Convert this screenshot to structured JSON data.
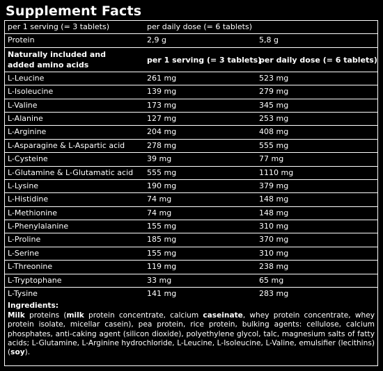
{
  "title": "Supplement Facts",
  "serving_row": {
    "per_serving": "per 1 serving (= 3 tablets)",
    "per_daily": "per daily dose (= 6 tablets)"
  },
  "protein_row": {
    "name": "Protein",
    "per_serving": "2,9 g",
    "per_daily": "5,8 g"
  },
  "amino_header": {
    "label": "Naturally included and added amino acids",
    "per_serving": "per 1 serving (= 3 tablets)",
    "per_daily": "per daily dose (= 6 tablets)"
  },
  "amino_acids": [
    {
      "name": "L-Leucine",
      "per_serving": "261 mg",
      "per_daily": "523 mg"
    },
    {
      "name": "L-Isoleucine",
      "per_serving": "139 mg",
      "per_daily": "279 mg"
    },
    {
      "name": "L-Valine",
      "per_serving": "173 mg",
      "per_daily": "345 mg"
    },
    {
      "name": "L-Alanine",
      "per_serving": "127 mg",
      "per_daily": "253 mg"
    },
    {
      "name": "L-Arginine",
      "per_serving": "204 mg",
      "per_daily": "408 mg"
    },
    {
      "name": "L-Asparagine & L-Aspartic acid",
      "per_serving": "278 mg",
      "per_daily": "555 mg"
    },
    {
      "name": "L-Cysteine",
      "per_serving": "39 mg",
      "per_daily": "77 mg"
    },
    {
      "name": "L-Glutamine & L-Glutamatic acid",
      "per_serving": "555 mg",
      "per_daily": "1110 mg"
    },
    {
      "name": "L-Lysine",
      "per_serving": "190 mg",
      "per_daily": "379 mg"
    },
    {
      "name": "L-Histidine",
      "per_serving": "74 mg",
      "per_daily": "148 mg"
    },
    {
      "name": "L-Methionine",
      "per_serving": "74 mg",
      "per_daily": "148 mg"
    },
    {
      "name": "L-Phenylalanine",
      "per_serving": "155 mg",
      "per_daily": "310 mg"
    },
    {
      "name": "L-Proline",
      "per_serving": "185 mg",
      "per_daily": "370 mg"
    },
    {
      "name": "L-Serine",
      "per_serving": "155 mg",
      "per_daily": "310 mg"
    },
    {
      "name": "L-Threonine",
      "per_serving": "119 mg",
      "per_daily": "238 mg"
    },
    {
      "name": "L-Tryptophane",
      "per_serving": "33 mg",
      "per_daily": "65 mg"
    },
    {
      "name": "L-Tysine",
      "per_serving": "141 mg",
      "per_daily": "283 mg"
    }
  ],
  "ingredients": {
    "label": "Ingredients:",
    "part1_bold": "Milk",
    "part2": " proteins (",
    "part3_bold": "milk",
    "part4": " protein concentrate, calcium ",
    "part5_bold": "caseinate",
    "part6": ", whey protein concentrate, whey protein isolate, micellar casein), pea protein, rice protein, bulking agents: cellulose, calcium phosphates, anti-caking agent (silicon dioxide), polyethylene glycol, talc, magnesium salts of fatty acids; L-Glutamine, L-Arginine hydrochloride, L-Leucine, L-Isoleucine, L-Valine, emulsifier (lecithins) (",
    "part7_bold": "soy",
    "part8": ")."
  }
}
